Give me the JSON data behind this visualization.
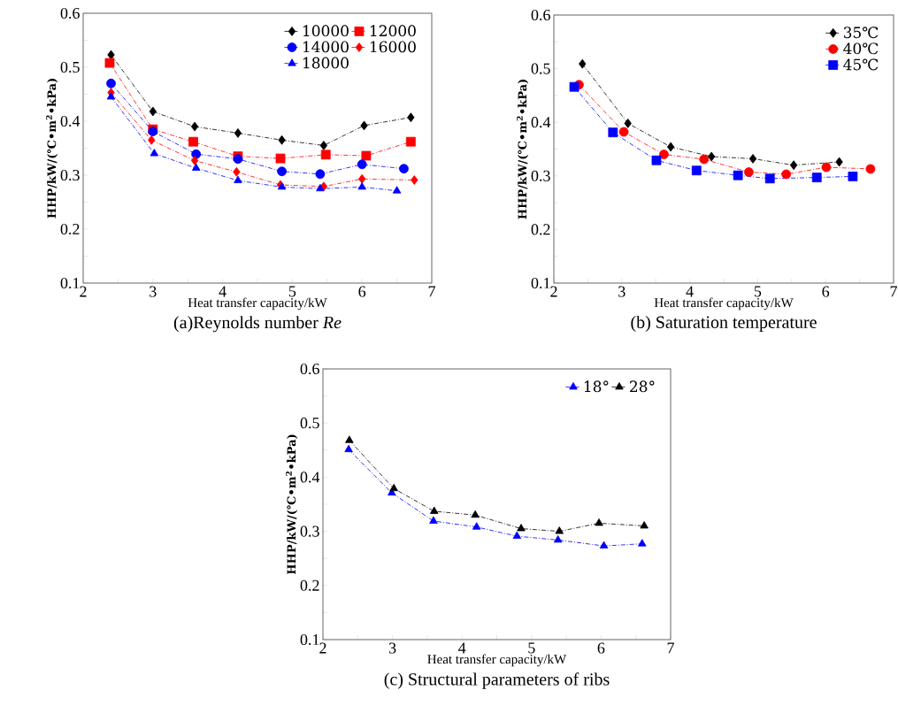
{
  "chart_data": [
    {
      "type": "line",
      "title": "(a)Reynolds number *Re*",
      "xlabel": "Heat transfer capacity/kW",
      "ylabel": "HHP/kW/(℃•m$^{2}$•kPa)",
      "xlim": [
        2,
        7
      ],
      "ylim": [
        0.1,
        0.6
      ],
      "xticks": [
        2,
        {
          "value": 2.5,
          "label": null
        },
        3,
        {
          "value": 3.5,
          "label": null
        },
        4,
        {
          "value": 4.5,
          "label": null
        },
        5,
        {
          "value": 5.5,
          "label": null
        },
        6,
        {
          "value": 6.5,
          "label": null
        },
        7
      ],
      "yticks": [
        0.1,
        {
          "value": 0.15,
          "label": null
        },
        0.2,
        {
          "value": 0.25,
          "label": null
        },
        0.3,
        {
          "value": 0.35,
          "label": null
        },
        0.4,
        {
          "value": 0.45,
          "label": null
        },
        0.5,
        {
          "value": 0.55,
          "label": null
        },
        0.6
      ],
      "legend": "top right",
      "line_style": "dashed",
      "grid": false,
      "series": [
        {
          "name": "10000",
          "color": "#000000",
          "marker": "diamond",
          "x": [
            2.4,
            3.0,
            3.6,
            4.22,
            4.85,
            5.45,
            6.03,
            6.7
          ],
          "values": [
            0.523,
            0.418,
            0.39,
            0.378,
            0.365,
            0.355,
            0.392,
            0.407
          ]
        },
        {
          "name": "12000",
          "color": "#ff0000",
          "marker": "square",
          "x": [
            2.38,
            3.0,
            3.58,
            4.22,
            4.83,
            5.48,
            6.06,
            6.7
          ],
          "values": [
            0.508,
            0.385,
            0.362,
            0.335,
            0.331,
            0.338,
            0.336,
            0.362
          ]
        },
        {
          "name": "14000",
          "color": "#0000ff",
          "marker": "circle",
          "x": [
            2.4,
            3.0,
            3.62,
            4.22,
            4.85,
            5.4,
            6.0,
            6.6
          ],
          "values": [
            0.47,
            0.381,
            0.339,
            0.33,
            0.307,
            0.302,
            0.32,
            0.312
          ]
        },
        {
          "name": "16000",
          "color": "#ff0000",
          "marker": "diamond",
          "x": [
            2.4,
            2.98,
            3.6,
            4.2,
            4.83,
            5.45,
            6.0,
            6.75
          ],
          "values": [
            0.453,
            0.365,
            0.327,
            0.306,
            0.282,
            0.279,
            0.293,
            0.291
          ]
        },
        {
          "name": "18000",
          "color": "#0000ff",
          "marker": "triangle",
          "x": [
            2.4,
            3.02,
            3.62,
            4.22,
            4.85,
            5.4,
            6.0,
            6.5
          ],
          "values": [
            0.445,
            0.34,
            0.313,
            0.29,
            0.278,
            0.275,
            0.278,
            0.271
          ]
        }
      ]
    },
    {
      "type": "line",
      "title": "(b) Saturation temperature",
      "xlabel": "Heat transfer capacity/kW",
      "ylabel": "HHP/kW/(℃•m$^{2}$•kPa)",
      "xlim": [
        2,
        7
      ],
      "ylim": [
        0.1,
        0.6
      ],
      "xticks": [
        2,
        {
          "value": 2.5,
          "label": null
        },
        3,
        {
          "value": 3.5,
          "label": null
        },
        4,
        {
          "value": 4.5,
          "label": null
        },
        5,
        {
          "value": 5.5,
          "label": null
        },
        6,
        {
          "value": 6.5,
          "label": null
        },
        7
      ],
      "yticks": [
        0.1,
        {
          "value": 0.15,
          "label": null
        },
        0.2,
        {
          "value": 0.25,
          "label": null
        },
        0.3,
        {
          "value": 0.35,
          "label": null
        },
        0.4,
        {
          "value": 0.45,
          "label": null
        },
        0.5,
        {
          "value": 0.55,
          "label": null
        },
        0.6
      ],
      "legend": "top right",
      "line_style": "dashed",
      "grid": false,
      "series": [
        {
          "name": "35℃",
          "color": "#000000",
          "marker": "diamond",
          "x": [
            2.42,
            3.09,
            3.72,
            4.32,
            4.93,
            5.53,
            6.2
          ],
          "values": [
            0.509,
            0.398,
            0.354,
            0.336,
            0.332,
            0.32,
            0.326
          ]
        },
        {
          "name": "40℃",
          "color": "#ff0000",
          "marker": "circle",
          "x": [
            2.37,
            3.03,
            3.62,
            4.21,
            4.87,
            5.42,
            6.01,
            6.66
          ],
          "values": [
            0.47,
            0.382,
            0.34,
            0.331,
            0.307,
            0.303,
            0.316,
            0.313
          ]
        },
        {
          "name": "45℃",
          "color": "#0000ff",
          "marker": "square",
          "x": [
            2.3,
            2.87,
            3.51,
            4.1,
            4.71,
            5.18,
            5.87,
            6.4
          ],
          "values": [
            0.466,
            0.381,
            0.329,
            0.31,
            0.301,
            0.295,
            0.297,
            0.299
          ]
        }
      ]
    },
    {
      "type": "line",
      "title": "(c) Structural parameters of ribs",
      "xlabel": "Heat transfer capacity/kW",
      "ylabel": "HHP/kW/(℃•m$^{2}$•kPa)",
      "xlim": [
        2,
        7
      ],
      "ylim": [
        0.1,
        0.6
      ],
      "xticks": [
        2,
        {
          "value": 2.5,
          "label": null
        },
        3,
        {
          "value": 3.5,
          "label": null
        },
        4,
        {
          "value": 4.5,
          "label": null
        },
        5,
        {
          "value": 5.5,
          "label": null
        },
        6,
        {
          "value": 6.5,
          "label": null
        },
        7
      ],
      "yticks": [
        0.1,
        {
          "value": 0.15,
          "label": null
        },
        0.2,
        {
          "value": 0.25,
          "label": null
        },
        0.3,
        {
          "value": 0.35,
          "label": null
        },
        0.4,
        {
          "value": 0.45,
          "label": null
        },
        0.5,
        {
          "value": 0.55,
          "label": null
        },
        0.6
      ],
      "legend": "top right",
      "line_style": "dashed",
      "grid": false,
      "series": [
        {
          "name": "18°",
          "color": "#0000ff",
          "marker": "triangle",
          "x": [
            2.37,
            2.99,
            3.59,
            4.21,
            4.79,
            5.38,
            6.04,
            6.59
          ],
          "values": [
            0.451,
            0.371,
            0.319,
            0.308,
            0.291,
            0.284,
            0.273,
            0.277
          ]
        },
        {
          "name": "28°",
          "color": "#000000",
          "marker": "triangle",
          "x": [
            2.38,
            3.02,
            3.6,
            4.19,
            4.85,
            5.4,
            5.97,
            6.62
          ],
          "values": [
            0.468,
            0.379,
            0.337,
            0.33,
            0.305,
            0.3,
            0.315,
            0.31
          ]
        }
      ]
    }
  ]
}
